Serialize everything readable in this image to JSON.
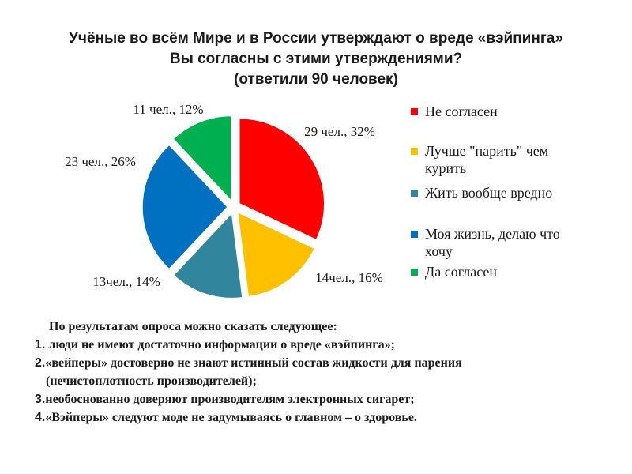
{
  "title_lines": [
    "Учёные во всём Мире и в России утверждают о вреде «вэйпинга»",
    "Вы согласны с этими утверждениями?",
    "(ответили 90 человек)"
  ],
  "chart_data": {
    "type": "pie",
    "series": [
      {
        "name": "Не согласен",
        "value": 32,
        "label": "29 чел., 32%",
        "color": "#ff0000"
      },
      {
        "name": "Лучше \"парить\" чем курить",
        "value": 16,
        "label": "14чел., 16%",
        "color": "#ffc000"
      },
      {
        "name": "Жить вообще вредно",
        "value": 14,
        "label": "13чел., 14%",
        "color": "#31859c"
      },
      {
        "name": "Моя жизнь, делаю что хочу",
        "value": 26,
        "label": "23 чел., 26%",
        "color": "#0070c0"
      },
      {
        "name": "Да согласен",
        "value": 12,
        "label": "11 чел., 12%",
        "color": "#00b050"
      }
    ],
    "legend_position": "right"
  },
  "legend": [
    {
      "line1": "Не согласен",
      "line2": ""
    },
    {
      "line1": "Лучше \"парить\" чем",
      "line2": "курить"
    },
    {
      "line1": "Жить вообще вредно",
      "line2": ""
    },
    {
      "line1": "Моя жизнь, делаю что",
      "line2": "хочу"
    },
    {
      "line1": "Да согласен",
      "line2": ""
    }
  ],
  "conclusion": {
    "intro": "По результатам опроса можно сказать следующее:",
    "items": [
      {
        "num": "1.",
        "text": " люди не имеют достаточно информации о вреде «вэйпинга»;",
        "cont": ""
      },
      {
        "num": "2.",
        "text": "«вейперы» достоверно не знают истинный состав жидкости для парения",
        "cont": "(нечистоплотность производителей);"
      },
      {
        "num": "3.",
        "text": "необоснованно доверяют производителям электронных сигарет;",
        "cont": ""
      },
      {
        "num": "4.",
        "text": "«Вэйперы»  следуют моде не задумываясь о главном – о здоровье.",
        "cont": ""
      }
    ]
  }
}
